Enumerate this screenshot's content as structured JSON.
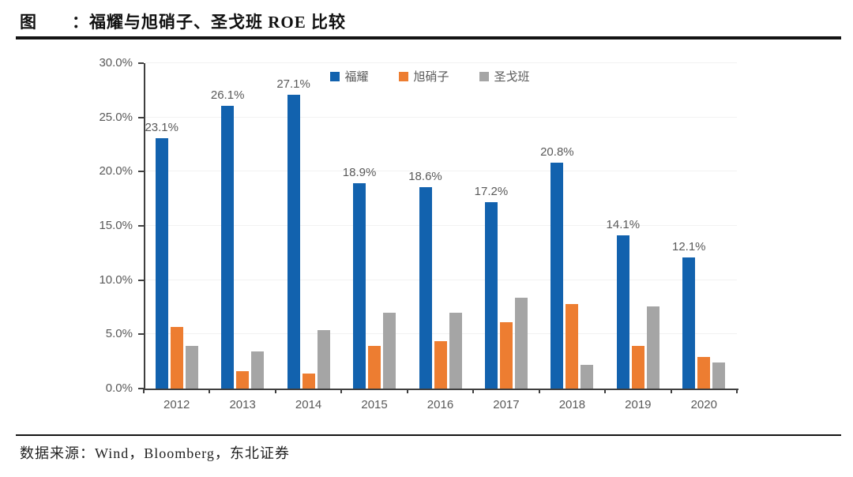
{
  "page": {
    "title": "图　　：福耀与旭硝子、圣戈班 ROE 比较",
    "source": "数据来源：Wind，Bloomberg，东北证券"
  },
  "chart_data": {
    "type": "bar",
    "title": "福耀与旭硝子、圣戈班 ROE 比较",
    "categories": [
      "2012",
      "2013",
      "2014",
      "2015",
      "2016",
      "2017",
      "2018",
      "2019",
      "2020"
    ],
    "series": [
      {
        "name": "福耀",
        "color": "#1262AE",
        "values": [
          23.1,
          26.1,
          27.1,
          18.9,
          18.6,
          17.2,
          20.8,
          14.1,
          12.1
        ],
        "data_labels": [
          "23.1%",
          "26.1%",
          "27.1%",
          "18.9%",
          "18.6%",
          "17.2%",
          "20.8%",
          "14.1%",
          "12.1%"
        ]
      },
      {
        "name": "旭硝子",
        "color": "#ED7D31",
        "values": [
          5.7,
          1.6,
          1.4,
          3.9,
          4.4,
          6.1,
          7.8,
          3.9,
          2.9
        ]
      },
      {
        "name": "圣戈班",
        "color": "#A5A5A5",
        "values": [
          3.9,
          3.4,
          5.4,
          7.0,
          7.0,
          8.4,
          2.2,
          7.6,
          2.4
        ]
      }
    ],
    "xlabel": "",
    "ylabel": "",
    "ylim": [
      0,
      30
    ],
    "ytick_step": 5,
    "ytick_labels": [
      "0.0%",
      "5.0%",
      "10.0%",
      "15.0%",
      "20.0%",
      "25.0%",
      "30.0%"
    ],
    "grid": "faint-horizontal",
    "legend_position": "top-center",
    "axis_color": "#3f3f3f",
    "label_color": "#595959"
  }
}
